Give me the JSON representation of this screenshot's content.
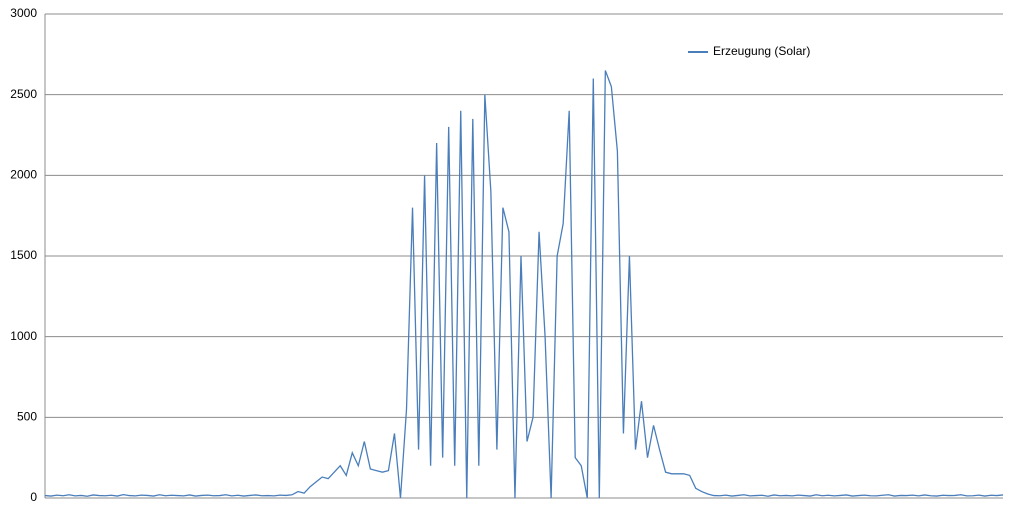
{
  "chart_data": {
    "type": "line",
    "series": [
      {
        "name": "Erzeugung (Solar)",
        "color": "#4a7ebb",
        "values": [
          15,
          12,
          18,
          14,
          20,
          13,
          16,
          11,
          19,
          15,
          14,
          17,
          12,
          21,
          15,
          13,
          18,
          16,
          12,
          20,
          14,
          17,
          15,
          13,
          19,
          12,
          16,
          18,
          14,
          15,
          20,
          13,
          17,
          12,
          16,
          19,
          14,
          15,
          13,
          18,
          16,
          20,
          40,
          30,
          70,
          100,
          130,
          120,
          160,
          200,
          140,
          280,
          200,
          350,
          180,
          170,
          160,
          170,
          400,
          0,
          550,
          1800,
          300,
          2000,
          200,
          2200,
          250,
          2300,
          200,
          2400,
          0,
          2350,
          200,
          2500,
          1900,
          300,
          1800,
          1650,
          0,
          1500,
          350,
          500,
          1650,
          1000,
          0,
          1500,
          1700,
          2400,
          250,
          200,
          0,
          2600,
          0,
          2650,
          2550,
          2150,
          400,
          1500,
          300,
          600,
          250,
          450,
          300,
          160,
          150,
          150,
          150,
          140,
          60,
          40,
          25,
          15,
          14,
          18,
          12,
          16,
          20,
          13,
          15,
          17,
          11,
          19,
          14,
          16,
          13,
          18,
          15,
          12,
          20,
          14,
          17,
          13,
          16,
          19,
          12,
          15,
          18,
          14,
          13,
          17,
          20,
          12,
          16,
          15,
          18,
          13,
          19,
          14,
          12,
          17,
          15,
          16,
          20,
          13,
          14,
          18,
          12,
          17,
          15,
          19
        ]
      }
    ],
    "ylim": [
      0,
      3000
    ],
    "yticks": [
      0,
      500,
      1000,
      1500,
      2000,
      2500,
      3000
    ],
    "grid": true,
    "legend": "top-right"
  }
}
